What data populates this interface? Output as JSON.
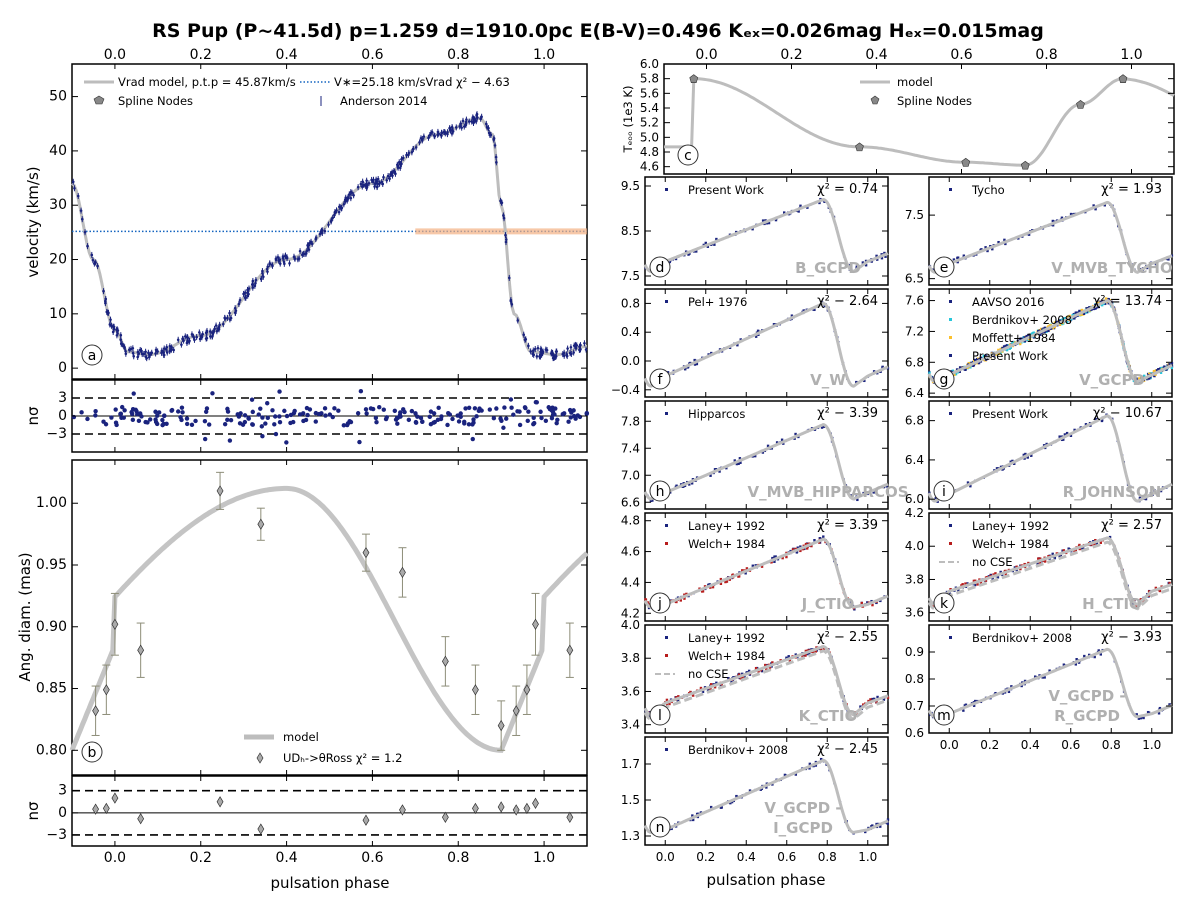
{
  "title": "RS Pup (P~41.5d) p=1.259 d=1910.0pc E(B-V)=0.496 Kₑₓ=0.026mag Hₑₓ=0.015mag",
  "common": {
    "xlabel": "pulsation phase",
    "phase_range": [
      -0.1,
      1.1
    ],
    "phase_ticks": [
      "0.0",
      "0.2",
      "0.4",
      "0.6",
      "0.8",
      "1.0"
    ]
  },
  "chart_data": [
    {
      "id": "a",
      "type": "scatter",
      "ylabel": "velocity (km/s)",
      "ylim": [
        -2,
        56
      ],
      "yticks": [
        "0",
        "10",
        "20",
        "30",
        "40",
        "50"
      ],
      "legend": [
        "Vrad model, p.t.p = 45.87km/s",
        "Spline Nodes",
        "V∗=25.18 km/sVrad χ² − 4.63",
        "Anderson 2014"
      ],
      "gamma_velocity": 25.18,
      "model_nodes": {
        "phase": [
          -0.1,
          -0.05,
          0.0,
          0.03,
          0.08,
          0.2,
          0.4,
          0.6,
          0.75,
          0.85,
          0.88,
          0.9,
          0.93,
          0.97,
          1.03,
          1.1
        ],
        "velocity": [
          34,
          20,
          7,
          3,
          2.5,
          6,
          20,
          34,
          43,
          46,
          43,
          30,
          10,
          3,
          2.5,
          4
        ]
      },
      "panel_letter": "a"
    },
    {
      "id": "a_res",
      "type": "scatter",
      "ylabel": "nσ",
      "ylim": [
        -6,
        6
      ],
      "yticks": [
        "3",
        "0",
        "−3"
      ],
      "reference_lines": [
        3,
        0,
        -3
      ]
    },
    {
      "id": "b",
      "type": "scatter",
      "ylabel": "Ang. diam. (mas)",
      "ylim": [
        0.78,
        1.035
      ],
      "yticks": [
        "0.80",
        "0.85",
        "0.90",
        "0.95",
        "1.00"
      ],
      "legend": [
        "model",
        "UDₕ->θRoss χ² = 1.2"
      ],
      "points": {
        "phase": [
          -0.045,
          -0.02,
          0.0,
          0.06,
          0.245,
          0.34,
          0.585,
          0.67,
          0.77,
          0.84,
          0.9,
          0.935,
          0.96,
          0.98,
          1.06
        ],
        "diam": [
          0.832,
          0.849,
          0.902,
          0.881,
          1.01,
          0.983,
          0.96,
          0.944,
          0.872,
          0.849,
          0.82,
          0.832,
          0.849,
          0.902,
          0.881
        ],
        "err": [
          0.02,
          0.02,
          0.025,
          0.022,
          0.015,
          0.013,
          0.015,
          0.02,
          0.02,
          0.02,
          0.02,
          0.02,
          0.02,
          0.025,
          0.022
        ]
      },
      "panel_letter": "b"
    },
    {
      "id": "b_res",
      "type": "scatter",
      "ylabel": "nσ",
      "ylim": [
        -4.5,
        5
      ],
      "yticks": [
        "3",
        "0",
        "−3"
      ],
      "reference_lines": [
        3,
        0,
        -3
      ]
    },
    {
      "id": "c",
      "type": "line",
      "ylabel": "Tₑₒₒ (1e3 K)",
      "ylim": [
        4.5,
        6.0
      ],
      "yticks": [
        "4.6",
        "4.8",
        "5.0",
        "5.2",
        "5.4",
        "5.6",
        "5.8",
        "6.0"
      ],
      "legend": [
        "model",
        "Spline Nodes"
      ],
      "nodes": {
        "phase": [
          -0.03,
          0.36,
          0.61,
          0.75,
          0.88,
          0.98
        ],
        "teff": [
          5.8,
          4.87,
          4.66,
          4.62,
          5.45,
          5.8
        ]
      },
      "panel_letter": "c"
    },
    {
      "id": "d",
      "type": "scatter",
      "legend": [
        "Present Work"
      ],
      "chi2": "χ² = 0.74",
      "filter": "B_GCPD",
      "ylim": [
        7.3,
        9.7
      ],
      "yticks": [
        "7.5",
        "8.5",
        "9.5"
      ],
      "panel_letter": "d",
      "shape": {
        "min": 7.6,
        "max": 9.2,
        "dip": 7.7
      }
    },
    {
      "id": "e",
      "type": "scatter",
      "legend": [
        "Tycho"
      ],
      "chi2": "χ² = 1.93",
      "filter": "V_MVB_TYCHO",
      "ylim": [
        6.4,
        8.1
      ],
      "yticks": [
        "6.5",
        "7.5"
      ],
      "panel_letter": "e",
      "shape": {
        "min": 6.6,
        "max": 7.7,
        "dip": 6.65
      }
    },
    {
      "id": "f",
      "type": "scatter",
      "legend": [
        "Pel+ 1976"
      ],
      "chi2": "χ² − 2.64",
      "filter": "V_W",
      "ylim": [
        -0.5,
        1.0
      ],
      "yticks": [
        "−0.4",
        "0.0",
        "0.4",
        "0.8"
      ],
      "panel_letter": "f",
      "shape": {
        "min": -0.35,
        "max": 0.8,
        "dip": -0.3
      }
    },
    {
      "id": "g",
      "type": "scatter",
      "legend": [
        "AAVSO 2016",
        "Berdnikov+ 2008",
        "Moffett+ 1984",
        "Present Work"
      ],
      "chi2": "χ² = 13.74",
      "filter": "V_GCPD",
      "ylim": [
        6.35,
        7.75
      ],
      "yticks": [
        "6.4",
        "6.8",
        "7.2",
        "7.6"
      ],
      "panel_letter": "g",
      "shape": {
        "min": 6.55,
        "max": 7.6,
        "dip": 6.55
      }
    },
    {
      "id": "h",
      "type": "scatter",
      "legend": [
        "Hipparcos"
      ],
      "chi2": "χ² − 3.39",
      "filter": "V_MVB_HIPPARCOS",
      "ylim": [
        6.5,
        8.1
      ],
      "yticks": [
        "6.6",
        "7.0",
        "7.4",
        "7.8"
      ],
      "panel_letter": "h",
      "shape": {
        "min": 6.65,
        "max": 7.75,
        "dip": 6.65
      }
    },
    {
      "id": "i",
      "type": "scatter",
      "legend": [
        "Present Work"
      ],
      "chi2": "χ² − 10.67",
      "filter": "R_JOHNSON",
      "ylim": [
        5.9,
        7.0
      ],
      "yticks": [
        "6.0",
        "6.4",
        "6.8"
      ],
      "panel_letter": "i",
      "shape": {
        "min": 5.98,
        "max": 6.85,
        "dip": 5.98
      }
    },
    {
      "id": "j",
      "type": "scatter",
      "legend": [
        "Laney+ 1992",
        "Welch+ 1984"
      ],
      "chi2": "χ² = 3.39",
      "filter": "J_CTIO",
      "ylim": [
        4.15,
        4.85
      ],
      "yticks": [
        "4.2",
        "4.4",
        "4.6",
        "4.8"
      ],
      "panel_letter": "j",
      "shape": {
        "min": 4.24,
        "max": 4.68,
        "dip": 4.22
      }
    },
    {
      "id": "k",
      "type": "scatter",
      "legend": [
        "Laney+ 1992",
        "Welch+ 1984",
        "no CSE"
      ],
      "chi2": "χ² = 2.57",
      "filter": "H_CTIO",
      "ylim": [
        3.55,
        4.2
      ],
      "yticks": [
        "3.6",
        "3.8",
        "4.0",
        "4.2"
      ],
      "panel_letter": "k",
      "shape": {
        "min": 3.65,
        "max": 4.05,
        "dip": 3.7
      }
    },
    {
      "id": "l",
      "type": "scatter",
      "legend": [
        "Laney+ 1992",
        "Welch+ 1984",
        "no CSE"
      ],
      "chi2": "χ² − 2.55",
      "filter": "K_CTIO",
      "ylim": [
        3.35,
        4.0
      ],
      "yticks": [
        "3.4",
        "3.6",
        "3.8",
        "4.0"
      ],
      "panel_letter": "l",
      "shape": {
        "min": 3.46,
        "max": 3.87,
        "dip": 3.5
      }
    },
    {
      "id": "m",
      "type": "scatter",
      "legend": [
        "Berdnikov+ 2008"
      ],
      "chi2": "χ² − 3.93",
      "filter": "V_GCPD -\nR_GCPD",
      "ylim": [
        0.6,
        1.0
      ],
      "yticks": [
        "0.6",
        "0.7",
        "0.8",
        "0.9"
      ],
      "panel_letter": "m",
      "shape": {
        "min": 0.66,
        "max": 0.91,
        "dip": 0.65
      }
    },
    {
      "id": "n",
      "type": "scatter",
      "legend": [
        "Berdnikov+ 2008"
      ],
      "chi2": "χ² − 2.45",
      "filter": "V_GCPD -\nI_GCPD",
      "ylim": [
        1.25,
        1.85
      ],
      "yticks": [
        "1.3",
        "1.5",
        "1.7"
      ],
      "panel_letter": "n",
      "shape": {
        "min": 1.32,
        "max": 1.72,
        "dip": 1.3
      }
    }
  ],
  "colors": {
    "data": "#1a237e",
    "model": "#bdbdbd",
    "cyan": "#26c6da",
    "red": "#b71c1c",
    "orange": "#ff9800",
    "yellow": "#fbc02d",
    "nodes": "#888888",
    "gamma": "#1565c0"
  }
}
